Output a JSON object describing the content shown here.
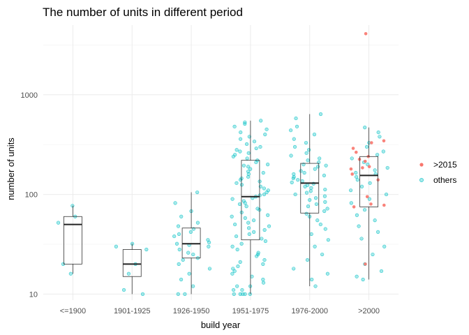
{
  "chart_data": {
    "type": "box-jitter",
    "title": "The number of units in different period",
    "xlabel": "build year",
    "ylabel": "number of units",
    "y_scale": "log10",
    "ylim": [
      8.7,
      5000
    ],
    "y_ticks": [
      10,
      100,
      1000
    ],
    "y_tick_labels": [
      "10",
      "100",
      "1000"
    ],
    "grid": true,
    "legend_position": "right",
    "categories": [
      "<=1900",
      "1901-1925",
      "1926-1950",
      "1951-1975",
      "1976-2000",
      ">2000"
    ],
    "legend": [
      {
        "label": ">2015",
        "color": "#F8766D"
      },
      {
        "label": "others",
        "color": "#00BFC4"
      }
    ],
    "boxes": [
      {
        "min": 16,
        "q1": 20,
        "median": 50,
        "q3": 60,
        "max": 77
      },
      {
        "min": 10,
        "q1": 15,
        "median": 20,
        "q3": 28,
        "max": 32
      },
      {
        "min": 10,
        "q1": 23,
        "median": 32,
        "q3": 46,
        "max": 105
      },
      {
        "min": 10,
        "q1": 35,
        "median": 95,
        "q3": 220,
        "max": 550
      },
      {
        "min": 12,
        "q1": 65,
        "median": 130,
        "q3": 205,
        "max": 640
      },
      {
        "min": 14,
        "q1": 75,
        "median": 155,
        "q3": 240,
        "max": 470
      }
    ],
    "series": [
      {
        "name": ">2015",
        "points": [
          [
            ">2000",
            4100
          ],
          [
            ">2000",
            345
          ],
          [
            ">2000",
            330
          ],
          [
            ">2000",
            290
          ],
          [
            ">2000",
            265
          ],
          [
            ">2000",
            240
          ],
          [
            ">2000",
            225
          ],
          [
            ">2000",
            215
          ],
          [
            ">2000",
            190
          ],
          [
            ">2000",
            185
          ],
          [
            ">2000",
            180
          ],
          [
            ">2000",
            160
          ],
          [
            ">2000",
            140
          ],
          [
            ">2000",
            95
          ],
          [
            ">2000",
            80
          ],
          [
            ">2000",
            78
          ],
          [
            ">2000",
            75
          ],
          [
            ">2000",
            20
          ]
        ]
      },
      {
        "name": "others",
        "points": [
          [
            "<=1900",
            77
          ],
          [
            "<=1900",
            60
          ],
          [
            "<=1900",
            52
          ],
          [
            "<=1900",
            20
          ],
          [
            "<=1900",
            16
          ],
          [
            "1901-1925",
            32
          ],
          [
            "1901-1925",
            30
          ],
          [
            "1901-1925",
            28
          ],
          [
            "1901-1925",
            20
          ],
          [
            "1901-1925",
            16
          ],
          [
            "1901-1925",
            11
          ],
          [
            "1901-1925",
            10
          ],
          [
            "1926-1950",
            105
          ],
          [
            "1926-1950",
            82
          ],
          [
            "1926-1950",
            68
          ],
          [
            "1926-1950",
            60
          ],
          [
            "1926-1950",
            52
          ],
          [
            "1926-1950",
            48
          ],
          [
            "1926-1950",
            45
          ],
          [
            "1926-1950",
            42
          ],
          [
            "1926-1950",
            40
          ],
          [
            "1926-1950",
            38
          ],
          [
            "1926-1950",
            35
          ],
          [
            "1926-1950",
            33
          ],
          [
            "1926-1950",
            32
          ],
          [
            "1926-1950",
            31
          ],
          [
            "1926-1950",
            30
          ],
          [
            "1926-1950",
            28
          ],
          [
            "1926-1950",
            26
          ],
          [
            "1926-1950",
            25
          ],
          [
            "1926-1950",
            23
          ],
          [
            "1926-1950",
            22
          ],
          [
            "1926-1950",
            20
          ],
          [
            "1926-1950",
            18
          ],
          [
            "1926-1950",
            16
          ],
          [
            "1926-1950",
            14
          ],
          [
            "1926-1950",
            12
          ],
          [
            "1926-1950",
            10
          ],
          [
            "1926-1950",
            10
          ],
          [
            "1951-1975",
            550
          ],
          [
            "1951-1975",
            530
          ],
          [
            "1951-1975",
            510
          ],
          [
            "1951-1975",
            480
          ],
          [
            "1951-1975",
            450
          ],
          [
            "1951-1975",
            420
          ],
          [
            "1951-1975",
            400
          ],
          [
            "1951-1975",
            380
          ],
          [
            "1951-1975",
            360
          ],
          [
            "1951-1975",
            340
          ],
          [
            "1951-1975",
            320
          ],
          [
            "1951-1975",
            300
          ],
          [
            "1951-1975",
            290
          ],
          [
            "1951-1975",
            280
          ],
          [
            "1951-1975",
            270
          ],
          [
            "1951-1975",
            260
          ],
          [
            "1951-1975",
            250
          ],
          [
            "1951-1975",
            240
          ],
          [
            "1951-1975",
            230
          ],
          [
            "1951-1975",
            220
          ],
          [
            "1951-1975",
            210
          ],
          [
            "1951-1975",
            200
          ],
          [
            "1951-1975",
            195
          ],
          [
            "1951-1975",
            190
          ],
          [
            "1951-1975",
            180
          ],
          [
            "1951-1975",
            170
          ],
          [
            "1951-1975",
            165
          ],
          [
            "1951-1975",
            160
          ],
          [
            "1951-1975",
            150
          ],
          [
            "1951-1975",
            145
          ],
          [
            "1951-1975",
            140
          ],
          [
            "1951-1975",
            135
          ],
          [
            "1951-1975",
            130
          ],
          [
            "1951-1975",
            125
          ],
          [
            "1951-1975",
            120
          ],
          [
            "1951-1975",
            115
          ],
          [
            "1951-1975",
            110
          ],
          [
            "1951-1975",
            105
          ],
          [
            "1951-1975",
            100
          ],
          [
            "1951-1975",
            98
          ],
          [
            "1951-1975",
            95
          ],
          [
            "1951-1975",
            92
          ],
          [
            "1951-1975",
            90
          ],
          [
            "1951-1975",
            86
          ],
          [
            "1951-1975",
            82
          ],
          [
            "1951-1975",
            80
          ],
          [
            "1951-1975",
            76
          ],
          [
            "1951-1975",
            72
          ],
          [
            "1951-1975",
            70
          ],
          [
            "1951-1975",
            66
          ],
          [
            "1951-1975",
            62
          ],
          [
            "1951-1975",
            60
          ],
          [
            "1951-1975",
            58
          ],
          [
            "1951-1975",
            55
          ],
          [
            "1951-1975",
            52
          ],
          [
            "1951-1975",
            50
          ],
          [
            "1951-1975",
            48
          ],
          [
            "1951-1975",
            46
          ],
          [
            "1951-1975",
            44
          ],
          [
            "1951-1975",
            42
          ],
          [
            "1951-1975",
            40
          ],
          [
            "1951-1975",
            38
          ],
          [
            "1951-1975",
            36
          ],
          [
            "1951-1975",
            34
          ],
          [
            "1951-1975",
            32
          ],
          [
            "1951-1975",
            30
          ],
          [
            "1951-1975",
            28
          ],
          [
            "1951-1975",
            26
          ],
          [
            "1951-1975",
            25
          ],
          [
            "1951-1975",
            24
          ],
          [
            "1951-1975",
            22
          ],
          [
            "1951-1975",
            21
          ],
          [
            "1951-1975",
            20
          ],
          [
            "1951-1975",
            19
          ],
          [
            "1951-1975",
            18
          ],
          [
            "1951-1975",
            17
          ],
          [
            "1951-1975",
            16
          ],
          [
            "1951-1975",
            15
          ],
          [
            "1951-1975",
            14
          ],
          [
            "1951-1975",
            13
          ],
          [
            "1951-1975",
            12
          ],
          [
            "1951-1975",
            12
          ],
          [
            "1951-1975",
            11
          ],
          [
            "1951-1975",
            11
          ],
          [
            "1951-1975",
            10
          ],
          [
            "1951-1975",
            10
          ],
          [
            "1951-1975",
            10
          ],
          [
            "1951-1975",
            10
          ],
          [
            "1951-1975",
            10
          ],
          [
            "1976-2000",
            640
          ],
          [
            "1976-2000",
            580
          ],
          [
            "1976-2000",
            480
          ],
          [
            "1976-2000",
            440
          ],
          [
            "1976-2000",
            400
          ],
          [
            "1976-2000",
            360
          ],
          [
            "1976-2000",
            330
          ],
          [
            "1976-2000",
            300
          ],
          [
            "1976-2000",
            280
          ],
          [
            "1976-2000",
            260
          ],
          [
            "1976-2000",
            245
          ],
          [
            "1976-2000",
            230
          ],
          [
            "1976-2000",
            220
          ],
          [
            "1976-2000",
            210
          ],
          [
            "1976-2000",
            200
          ],
          [
            "1976-2000",
            195
          ],
          [
            "1976-2000",
            190
          ],
          [
            "1976-2000",
            180
          ],
          [
            "1976-2000",
            172
          ],
          [
            "1976-2000",
            165
          ],
          [
            "1976-2000",
            160
          ],
          [
            "1976-2000",
            155
          ],
          [
            "1976-2000",
            150
          ],
          [
            "1976-2000",
            145
          ],
          [
            "1976-2000",
            140
          ],
          [
            "1976-2000",
            136
          ],
          [
            "1976-2000",
            132
          ],
          [
            "1976-2000",
            128
          ],
          [
            "1976-2000",
            124
          ],
          [
            "1976-2000",
            120
          ],
          [
            "1976-2000",
            116
          ],
          [
            "1976-2000",
            112
          ],
          [
            "1976-2000",
            108
          ],
          [
            "1976-2000",
            104
          ],
          [
            "1976-2000",
            100
          ],
          [
            "1976-2000",
            96
          ],
          [
            "1976-2000",
            92
          ],
          [
            "1976-2000",
            88
          ],
          [
            "1976-2000",
            84
          ],
          [
            "1976-2000",
            80
          ],
          [
            "1976-2000",
            76
          ],
          [
            "1976-2000",
            72
          ],
          [
            "1976-2000",
            68
          ],
          [
            "1976-2000",
            64
          ],
          [
            "1976-2000",
            60
          ],
          [
            "1976-2000",
            55
          ],
          [
            "1976-2000",
            50
          ],
          [
            "1976-2000",
            45
          ],
          [
            "1976-2000",
            40
          ],
          [
            "1976-2000",
            35
          ],
          [
            "1976-2000",
            30
          ],
          [
            "1976-2000",
            25
          ],
          [
            "1976-2000",
            22
          ],
          [
            "1976-2000",
            18
          ],
          [
            "1976-2000",
            16
          ],
          [
            "1976-2000",
            14
          ],
          [
            "1976-2000",
            12
          ],
          [
            ">2000",
            470
          ],
          [
            ">2000",
            420
          ],
          [
            ">2000",
            380
          ],
          [
            ">2000",
            330
          ],
          [
            ">2000",
            300
          ],
          [
            ">2000",
            270
          ],
          [
            ">2000",
            250
          ],
          [
            ">2000",
            230
          ],
          [
            ">2000",
            210
          ],
          [
            ">2000",
            200
          ],
          [
            ">2000",
            185
          ],
          [
            ">2000",
            175
          ],
          [
            ">2000",
            165
          ],
          [
            ">2000",
            160
          ],
          [
            ">2000",
            150
          ],
          [
            ">2000",
            140
          ],
          [
            ">2000",
            130
          ],
          [
            ">2000",
            120
          ],
          [
            ">2000",
            110
          ],
          [
            ">2000",
            100
          ],
          [
            ">2000",
            90
          ],
          [
            ">2000",
            82
          ],
          [
            ">2000",
            70
          ],
          [
            ">2000",
            62
          ],
          [
            ">2000",
            55
          ],
          [
            ">2000",
            48
          ],
          [
            ">2000",
            42
          ],
          [
            ">2000",
            36
          ],
          [
            ">2000",
            30
          ],
          [
            ">2000",
            25
          ],
          [
            ">2000",
            20
          ],
          [
            ">2000",
            17
          ],
          [
            ">2000",
            15
          ],
          [
            ">2000",
            14
          ]
        ]
      }
    ]
  }
}
